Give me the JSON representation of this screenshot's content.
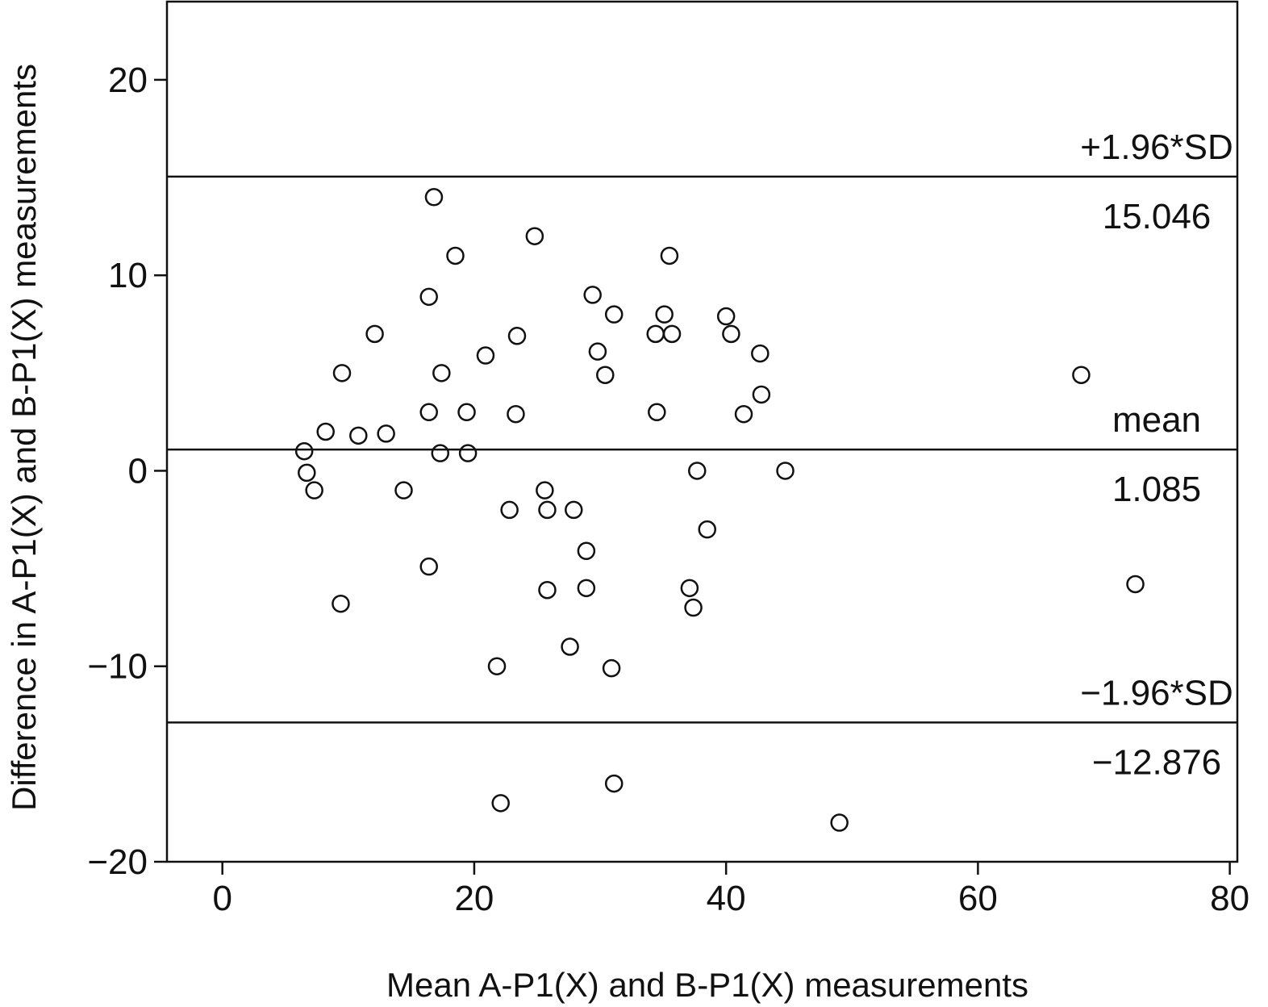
{
  "chart_data": {
    "type": "scatter",
    "title": "",
    "xlabel": "Mean A-P1(X) and B-P1(X) measurements",
    "ylabel": "Difference in A-P1(X) and B-P1(X) measurements",
    "xlim": [
      -4.4,
      80.6
    ],
    "ylim": [
      -20,
      24
    ],
    "x_ticks": [
      0,
      20,
      40,
      60,
      80
    ],
    "x_tick_labels": [
      "0",
      "20",
      "40",
      "60",
      "80"
    ],
    "y_ticks": [
      20,
      10,
      0,
      -10,
      -20
    ],
    "y_tick_labels": [
      "20",
      "10",
      "0",
      "−10",
      "−20"
    ],
    "grid": false,
    "reference_lines": [
      {
        "y": 15.046,
        "name": "+1.96*SD",
        "value_label": "15.046"
      },
      {
        "y": 1.085,
        "name": "mean",
        "value_label": "1.085"
      },
      {
        "y": -12.876,
        "name": "−1.96*SD",
        "value_label": "−12.876"
      }
    ],
    "series": [
      {
        "marker": "open-circle",
        "color": "#111111",
        "points": [
          {
            "x": 16.8,
            "y": 14.0
          },
          {
            "x": 24.8,
            "y": 12.0
          },
          {
            "x": 18.5,
            "y": 11.0
          },
          {
            "x": 35.5,
            "y": 11.0
          },
          {
            "x": 16.4,
            "y": 8.9
          },
          {
            "x": 29.4,
            "y": 9.0
          },
          {
            "x": 31.1,
            "y": 8.0
          },
          {
            "x": 35.1,
            "y": 8.0
          },
          {
            "x": 40.0,
            "y": 7.9
          },
          {
            "x": 12.1,
            "y": 7.0
          },
          {
            "x": 23.4,
            "y": 6.9
          },
          {
            "x": 34.4,
            "y": 7.0
          },
          {
            "x": 35.7,
            "y": 7.0
          },
          {
            "x": 40.4,
            "y": 7.0
          },
          {
            "x": 20.9,
            "y": 5.9
          },
          {
            "x": 29.8,
            "y": 6.1
          },
          {
            "x": 42.7,
            "y": 6.0
          },
          {
            "x": 9.5,
            "y": 5.0
          },
          {
            "x": 17.4,
            "y": 5.0
          },
          {
            "x": 30.4,
            "y": 4.9
          },
          {
            "x": 68.2,
            "y": 4.9
          },
          {
            "x": 42.8,
            "y": 3.9
          },
          {
            "x": 16.4,
            "y": 3.0
          },
          {
            "x": 19.4,
            "y": 3.0
          },
          {
            "x": 23.3,
            "y": 2.9
          },
          {
            "x": 34.5,
            "y": 3.0
          },
          {
            "x": 41.4,
            "y": 2.9
          },
          {
            "x": 8.2,
            "y": 2.0
          },
          {
            "x": 10.8,
            "y": 1.8
          },
          {
            "x": 13.0,
            "y": 1.9
          },
          {
            "x": 6.5,
            "y": 1.0
          },
          {
            "x": 17.3,
            "y": 0.9
          },
          {
            "x": 19.5,
            "y": 0.9
          },
          {
            "x": 6.7,
            "y": -0.1
          },
          {
            "x": 37.7,
            "y": 0.0
          },
          {
            "x": 44.7,
            "y": 0.0
          },
          {
            "x": 7.3,
            "y": -1.0
          },
          {
            "x": 14.4,
            "y": -1.0
          },
          {
            "x": 25.6,
            "y": -1.0
          },
          {
            "x": 22.8,
            "y": -2.0
          },
          {
            "x": 25.8,
            "y": -2.0
          },
          {
            "x": 27.9,
            "y": -2.0
          },
          {
            "x": 38.5,
            "y": -3.0
          },
          {
            "x": 28.9,
            "y": -4.1
          },
          {
            "x": 16.4,
            "y": -4.9
          },
          {
            "x": 25.8,
            "y": -6.1
          },
          {
            "x": 28.9,
            "y": -6.0
          },
          {
            "x": 37.1,
            "y": -6.0
          },
          {
            "x": 72.5,
            "y": -5.8
          },
          {
            "x": 9.4,
            "y": -6.8
          },
          {
            "x": 37.4,
            "y": -7.0
          },
          {
            "x": 27.6,
            "y": -9.0
          },
          {
            "x": 21.8,
            "y": -10.0
          },
          {
            "x": 30.9,
            "y": -10.1
          },
          {
            "x": 31.1,
            "y": -16.0
          },
          {
            "x": 22.1,
            "y": -17.0
          },
          {
            "x": 49.0,
            "y": -18.0
          }
        ]
      }
    ]
  }
}
